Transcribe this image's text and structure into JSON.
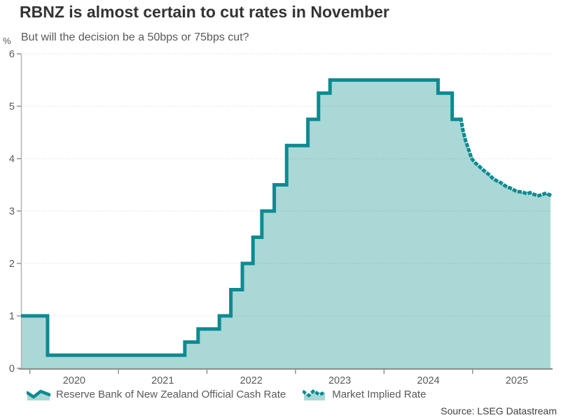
{
  "header": {
    "title": "RBNZ is almost certain to cut rates in November",
    "subtitle": "But will the decision be a 50bps or 75bps cut?"
  },
  "footer": {
    "source": "Source: LSEG Datastream"
  },
  "colors": {
    "line_teal": "#0e8a91",
    "fill_teal": "#a9d8d7",
    "title_text": "#333333",
    "gray_text": "#595959",
    "axis_gray": "#8c8c8c",
    "y_axis_gray": "#b0b0b0",
    "grid_gray": "#d9d9d9"
  },
  "chart_data": {
    "type": "area",
    "title": "RBNZ is almost certain to cut rates in November",
    "subtitle": "But will the decision be a 50bps or 75bps cut?",
    "grid": "horizontal-dotted",
    "legend_position": "bottom",
    "y_axis": {
      "unit": "%",
      "min": 0,
      "max": 6,
      "ticks": [
        0,
        1,
        2,
        3,
        4,
        5,
        6
      ]
    },
    "x_axis": {
      "min": 2019.9,
      "max": 2025.88,
      "ticks": [
        2020,
        2021,
        2022,
        2023,
        2024,
        2025
      ],
      "tick_labels": [
        "2020",
        "2021",
        "2022",
        "2023",
        "2024",
        "2025"
      ],
      "tick_label_offset": 0.5
    },
    "series": [
      {
        "name": "Reserve Bank of New Zealand Official Cash Rate",
        "draw": "step",
        "line_style": "solid",
        "points": [
          [
            2019.9,
            1.0
          ],
          [
            2020.2,
            0.25
          ],
          [
            2021.75,
            0.5
          ],
          [
            2021.9,
            0.75
          ],
          [
            2022.14,
            1.0
          ],
          [
            2022.27,
            1.5
          ],
          [
            2022.4,
            2.0
          ],
          [
            2022.52,
            2.5
          ],
          [
            2022.62,
            3.0
          ],
          [
            2022.76,
            3.5
          ],
          [
            2022.9,
            4.25
          ],
          [
            2023.14,
            4.75
          ],
          [
            2023.26,
            5.25
          ],
          [
            2023.39,
            5.5
          ],
          [
            2024.61,
            5.25
          ],
          [
            2024.77,
            4.75
          ],
          [
            2024.87,
            4.75
          ]
        ]
      },
      {
        "name": "Market Implied Rate",
        "draw": "line",
        "line_style": "dotted",
        "points": [
          [
            2024.87,
            4.75
          ],
          [
            2024.89,
            4.55
          ],
          [
            2024.92,
            4.35
          ],
          [
            2024.96,
            4.15
          ],
          [
            2024.99,
            4.0
          ],
          [
            2025.03,
            3.92
          ],
          [
            2025.07,
            3.86
          ],
          [
            2025.11,
            3.8
          ],
          [
            2025.15,
            3.74
          ],
          [
            2025.19,
            3.69
          ],
          [
            2025.23,
            3.62
          ],
          [
            2025.27,
            3.58
          ],
          [
            2025.31,
            3.55
          ],
          [
            2025.35,
            3.5
          ],
          [
            2025.39,
            3.46
          ],
          [
            2025.44,
            3.43
          ],
          [
            2025.48,
            3.39
          ],
          [
            2025.52,
            3.37
          ],
          [
            2025.57,
            3.36
          ],
          [
            2025.61,
            3.33
          ],
          [
            2025.65,
            3.35
          ],
          [
            2025.69,
            3.32
          ],
          [
            2025.74,
            3.29
          ],
          [
            2025.78,
            3.31
          ],
          [
            2025.83,
            3.34
          ],
          [
            2025.88,
            3.3
          ]
        ]
      }
    ]
  }
}
